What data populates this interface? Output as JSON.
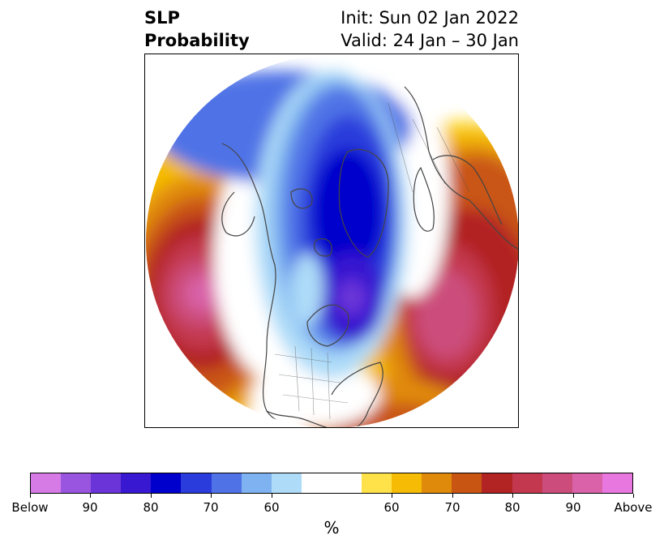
{
  "title": {
    "left_line1": "SLP",
    "left_line2": "Probability",
    "right_line1": "Init: Sun 02 Jan 2022",
    "right_line2": "Valid: 24 Jan – 30 Jan"
  },
  "map": {
    "projection": "north polar stereographic",
    "regions": [
      "North America",
      "Greenland",
      "Arctic Ocean",
      "Europe",
      "North Pacific",
      "North Atlantic"
    ]
  },
  "colorbar": {
    "unit": "%",
    "colors": [
      "#d67ae6",
      "#9a55e0",
      "#6a34d8",
      "#3818d0",
      "#0000cc",
      "#2a3ddc",
      "#4f73e6",
      "#7fb2f0",
      "#aedcf8",
      "#ffffff",
      "#ffffff",
      "#ffe24a",
      "#f5bb05",
      "#e08a0b",
      "#c95512",
      "#b22424",
      "#c3384e",
      "#cc4d7c",
      "#d962a8",
      "#e878df"
    ],
    "tick_labels": [
      "Below",
      "90",
      "80",
      "70",
      "60",
      "60",
      "70",
      "80",
      "90",
      "Above"
    ]
  }
}
